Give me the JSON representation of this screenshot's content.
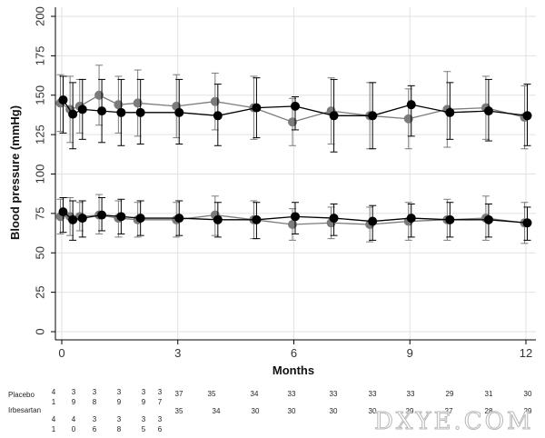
{
  "chart_data": {
    "type": "line",
    "title": "",
    "xlabel": "Months",
    "ylabel": "Blood pressure (mmHg)",
    "xlim": [
      -0.3,
      12.2
    ],
    "ylim": [
      -5,
      200
    ],
    "x_ticks": [
      0,
      3,
      6,
      9,
      12
    ],
    "y_ticks": [
      0,
      25,
      50,
      75,
      100,
      125,
      150,
      175,
      200
    ],
    "grid": true,
    "x": [
      0,
      0.25,
      0.5,
      1,
      1.5,
      2,
      3,
      4,
      5,
      6,
      7,
      8,
      9,
      10,
      11,
      12
    ],
    "series": [
      {
        "color": "#7b7b7b",
        "measure": "systolic",
        "values": [
          145,
          141,
          143,
          150,
          144,
          145,
          143,
          146,
          142,
          133,
          140,
          137,
          135,
          141,
          142,
          136
        ],
        "upper": [
          163,
          162,
          160,
          169,
          162,
          166,
          163,
          164,
          162,
          148,
          161,
          158,
          154,
          165,
          162,
          156
        ],
        "lower": [
          127,
          120,
          126,
          131,
          126,
          124,
          123,
          128,
          122,
          118,
          119,
          116,
          116,
          117,
          122,
          116
        ]
      },
      {
        "color": "#000000",
        "measure": "systolic",
        "values": [
          147,
          138,
          141,
          140,
          139,
          139,
          139,
          137,
          142,
          143,
          137,
          137,
          144,
          139,
          140,
          137
        ],
        "upper": [
          162,
          158,
          160,
          160,
          160,
          160,
          160,
          157,
          161,
          149,
          160,
          158,
          156,
          158,
          160,
          157
        ],
        "lower": [
          126,
          116,
          122,
          120,
          118,
          119,
          119,
          118,
          123,
          128,
          114,
          116,
          124,
          122,
          121,
          118
        ]
      },
      {
        "color": "#7b7b7b",
        "measure": "diastolic",
        "values": [
          73,
          73,
          73,
          74,
          72,
          71,
          71,
          74,
          71,
          68,
          69,
          68,
          70,
          71,
          72,
          69
        ],
        "upper": [
          84,
          85,
          82,
          87,
          83,
          82,
          82,
          86,
          83,
          78,
          79,
          79,
          82,
          84,
          86,
          82
        ],
        "lower": [
          62,
          61,
          64,
          62,
          60,
          60,
          60,
          61,
          59,
          58,
          59,
          57,
          58,
          58,
          58,
          56
        ]
      },
      {
        "color": "#000000",
        "measure": "diastolic",
        "values": [
          76,
          71,
          72,
          74,
          73,
          72,
          72,
          71,
          71,
          73,
          72,
          70,
          72,
          71,
          71,
          69
        ],
        "upper": [
          85,
          83,
          83,
          85,
          84,
          83,
          83,
          82,
          82,
          82,
          81,
          80,
          81,
          82,
          81,
          79
        ],
        "lower": [
          63,
          58,
          60,
          64,
          62,
          61,
          61,
          60,
          59,
          62,
          61,
          58,
          60,
          60,
          60,
          58
        ]
      }
    ],
    "risk_table": {
      "rows": [
        {
          "label": "Placebo",
          "early_numbers": [
            [
              "4",
              "1"
            ],
            [
              "3",
              "9"
            ],
            [
              "3",
              "8"
            ],
            [
              "3",
              "9"
            ],
            [
              "3",
              "9"
            ],
            [
              "3",
              "7"
            ]
          ],
          "late_numbers": [
            "37",
            "35",
            "34",
            "33",
            "33",
            "33",
            "33",
            "29",
            "31",
            "30"
          ]
        },
        {
          "label": "Irbesartan",
          "early_numbers": [
            [
              "4",
              "1"
            ],
            [
              "4",
              "0"
            ],
            [
              "3",
              "6"
            ],
            [
              "3",
              "8"
            ],
            [
              "3",
              "5"
            ],
            [
              "3",
              "6"
            ]
          ],
          "late_numbers": [
            "35",
            "34",
            "30",
            "30",
            "30",
            "30",
            "29",
            "27",
            "28",
            "29"
          ]
        }
      ]
    }
  },
  "watermark_text": "DXYE.COM"
}
